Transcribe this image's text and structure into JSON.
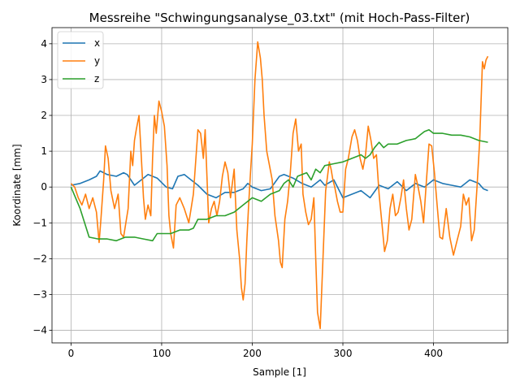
{
  "chart_data": {
    "type": "line",
    "title": "Messreihe \"Schwingungsanalyse_03.txt\" (mit Hoch-Pass-Filter)",
    "xlabel": "Sample [1]",
    "ylabel": "Koordinate [mm]",
    "xlim": [
      -21,
      482
    ],
    "ylim": [
      -4.35,
      4.45
    ],
    "xticks": [
      0,
      100,
      200,
      300,
      400
    ],
    "yticks": [
      -4,
      -3,
      -2,
      -1,
      0,
      1,
      2,
      3,
      4
    ],
    "grid": true,
    "legend": "top-left",
    "series": [
      {
        "name": "x",
        "color": "#1f77b4",
        "x": [
          0,
          10,
          20,
          28,
          32,
          40,
          50,
          58,
          62,
          70,
          80,
          85,
          95,
          105,
          112,
          118,
          125,
          130,
          140,
          150,
          160,
          170,
          180,
          190,
          195,
          200,
          210,
          220,
          230,
          235,
          245,
          255,
          265,
          275,
          280,
          290,
          300,
          310,
          320,
          330,
          340,
          350,
          360,
          370,
          380,
          390,
          400,
          410,
          420,
          430,
          440,
          450,
          455,
          460
        ],
        "values": [
          0.05,
          0.1,
          0.2,
          0.3,
          0.45,
          0.35,
          0.3,
          0.4,
          0.35,
          0.05,
          0.25,
          0.35,
          0.25,
          0.0,
          -0.05,
          0.3,
          0.35,
          0.25,
          0.05,
          -0.2,
          -0.3,
          -0.15,
          -0.15,
          -0.05,
          0.1,
          0.0,
          -0.1,
          -0.05,
          0.3,
          0.35,
          0.25,
          0.1,
          0.0,
          0.2,
          0.05,
          0.2,
          -0.3,
          -0.2,
          -0.1,
          -0.3,
          0.05,
          -0.05,
          0.15,
          -0.1,
          0.1,
          0.0,
          0.2,
          0.1,
          0.05,
          0.0,
          0.2,
          0.1,
          -0.05,
          -0.1
        ]
      },
      {
        "name": "y",
        "color": "#ff7f0e",
        "x": [
          0,
          4,
          8,
          12,
          16,
          20,
          24,
          28,
          31,
          33,
          36,
          38,
          41,
          44,
          48,
          52,
          55,
          58,
          63,
          66,
          68,
          70,
          72,
          75,
          77,
          80,
          82,
          85,
          88,
          90,
          92,
          94,
          97,
          100,
          103,
          106,
          108,
          110,
          113,
          116,
          120,
          125,
          130,
          135,
          140,
          143,
          146,
          148,
          150,
          152,
          155,
          158,
          161,
          164,
          167,
          170,
          173,
          176,
          180,
          183,
          186,
          188,
          190,
          192,
          194,
          196,
          198,
          200,
          203,
          206,
          209,
          211,
          213,
          216,
          219,
          222,
          225,
          229,
          231,
          233,
          236,
          239,
          242,
          245,
          248,
          251,
          254,
          256,
          259,
          262,
          265,
          268,
          270,
          272,
          275,
          278,
          281,
          283,
          285,
          287,
          289,
          291,
          294,
          297,
          300,
          303,
          306,
          310,
          313,
          316,
          319,
          322,
          325,
          328,
          331,
          334,
          337,
          340,
          343,
          346,
          349,
          352,
          355,
          358,
          361,
          364,
          367,
          370,
          373,
          376,
          380,
          383,
          386,
          389,
          392,
          395,
          398,
          401,
          404,
          407,
          410,
          414,
          418,
          422,
          426,
          430,
          433,
          436,
          439,
          442,
          445,
          448,
          451,
          454,
          456,
          458,
          460
        ],
        "values": [
          0.1,
          0.0,
          -0.3,
          -0.5,
          -0.2,
          -0.6,
          -0.3,
          -0.7,
          -1.55,
          -0.9,
          0.2,
          1.15,
          0.8,
          -0.1,
          -0.6,
          -0.2,
          -1.3,
          -1.4,
          -0.6,
          1.0,
          0.6,
          1.3,
          1.6,
          2.0,
          1.1,
          -0.3,
          -0.9,
          -0.5,
          -0.8,
          0.8,
          2.0,
          1.5,
          2.4,
          2.1,
          1.7,
          0.6,
          -0.8,
          -1.3,
          -1.7,
          -0.5,
          -0.3,
          -0.6,
          -1.0,
          -0.2,
          1.6,
          1.5,
          0.8,
          1.6,
          0.3,
          -1.0,
          -0.6,
          -0.4,
          -0.8,
          -0.4,
          0.3,
          0.7,
          0.4,
          -0.3,
          0.5,
          -1.2,
          -2.0,
          -2.8,
          -3.15,
          -2.7,
          -1.5,
          -0.5,
          0.4,
          1.2,
          3.0,
          4.05,
          3.6,
          3.0,
          2.0,
          1.0,
          0.6,
          0.2,
          -0.8,
          -1.5,
          -2.1,
          -2.25,
          -0.9,
          -0.4,
          0.4,
          1.5,
          1.9,
          1.0,
          1.2,
          -0.2,
          -0.7,
          -1.05,
          -0.9,
          -0.3,
          -2.0,
          -3.5,
          -3.95,
          -2.0,
          -0.1,
          0.3,
          0.7,
          0.5,
          0.2,
          0.0,
          -0.4,
          -0.7,
          -0.7,
          0.5,
          0.8,
          1.4,
          1.6,
          1.3,
          0.8,
          0.5,
          0.9,
          1.7,
          1.3,
          0.8,
          0.9,
          -0.2,
          -1.0,
          -1.8,
          -1.5,
          -0.6,
          -0.2,
          -0.8,
          -0.7,
          -0.3,
          0.2,
          -0.6,
          -1.2,
          -0.9,
          0.35,
          0.0,
          -0.4,
          -1.0,
          0.1,
          1.2,
          1.15,
          0.4,
          -0.5,
          -1.4,
          -1.45,
          -0.6,
          -1.4,
          -1.9,
          -1.5,
          -1.1,
          -0.2,
          -0.5,
          -0.3,
          -1.5,
          -1.2,
          0.0,
          1.3,
          3.5,
          3.3,
          3.55,
          3.65
        ]
      },
      {
        "name": "z",
        "color": "#2ca02c",
        "x": [
          0,
          10,
          20,
          30,
          40,
          50,
          60,
          70,
          80,
          90,
          95,
          100,
          110,
          120,
          130,
          135,
          140,
          150,
          160,
          170,
          180,
          190,
          200,
          210,
          220,
          230,
          235,
          240,
          245,
          250,
          255,
          260,
          265,
          270,
          275,
          280,
          290,
          300,
          305,
          310,
          315,
          320,
          325,
          330,
          335,
          340,
          345,
          350,
          360,
          370,
          380,
          385,
          390,
          395,
          400,
          410,
          420,
          430,
          440,
          450,
          460
        ],
        "values": [
          0.0,
          -0.6,
          -1.4,
          -1.45,
          -1.45,
          -1.5,
          -1.4,
          -1.4,
          -1.45,
          -1.5,
          -1.3,
          -1.3,
          -1.3,
          -1.2,
          -1.2,
          -1.15,
          -0.9,
          -0.9,
          -0.8,
          -0.8,
          -0.7,
          -0.5,
          -0.3,
          -0.4,
          -0.2,
          -0.1,
          0.1,
          0.2,
          0.0,
          0.3,
          0.35,
          0.4,
          0.2,
          0.5,
          0.4,
          0.6,
          0.65,
          0.7,
          0.75,
          0.8,
          0.85,
          0.9,
          0.8,
          0.9,
          1.1,
          1.25,
          1.1,
          1.2,
          1.2,
          1.3,
          1.35,
          1.45,
          1.55,
          1.6,
          1.5,
          1.5,
          1.45,
          1.45,
          1.4,
          1.3,
          1.25
        ]
      }
    ]
  }
}
